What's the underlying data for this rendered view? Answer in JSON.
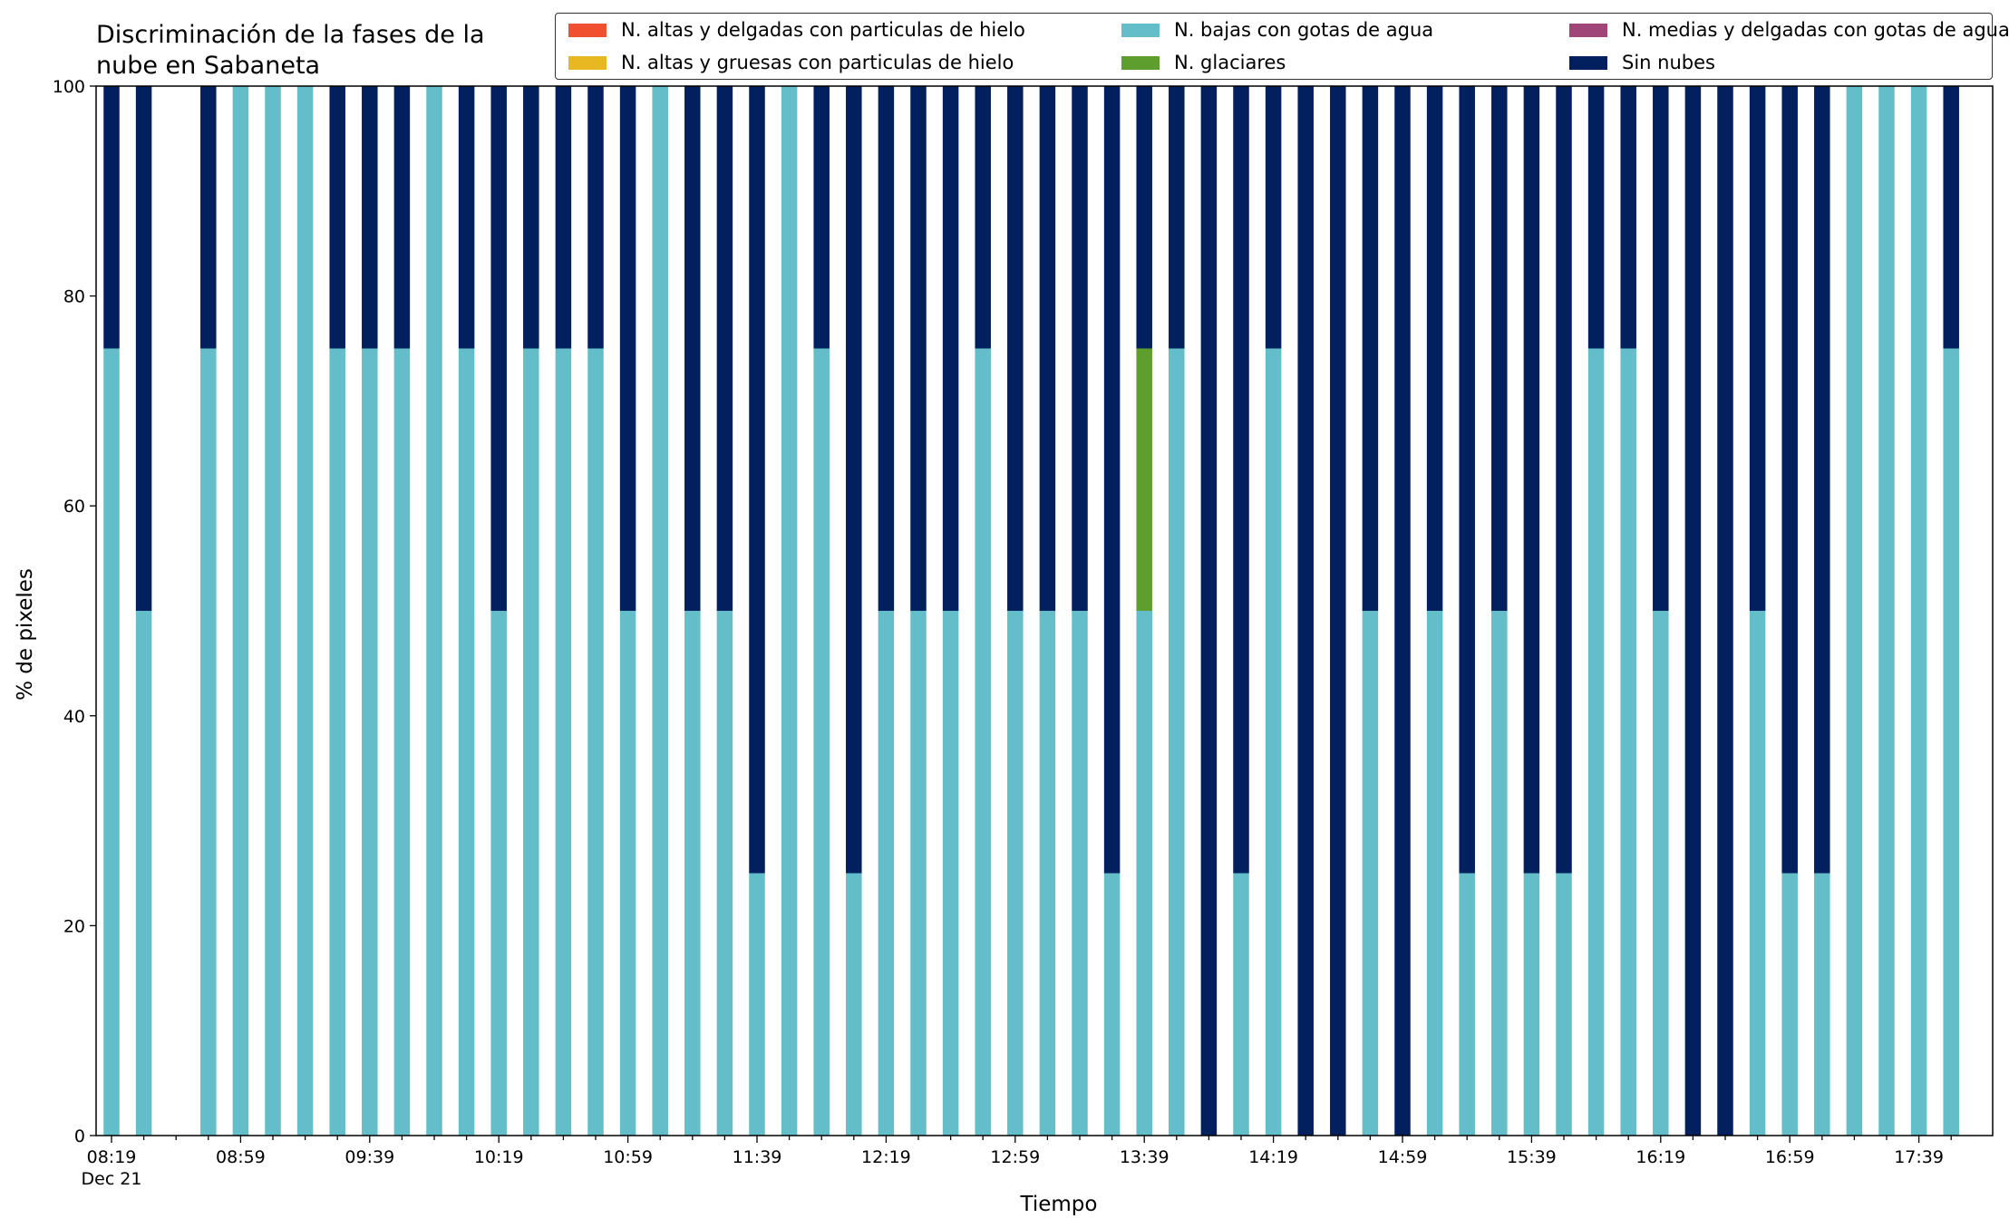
{
  "chart_data": {
    "type": "bar",
    "stacked": true,
    "title_lines": [
      "Discriminación de la fases de la",
      "nube en Sabaneta"
    ],
    "xlabel": "Tiempo",
    "ylabel": "% de pixeles",
    "ylim": [
      0,
      100
    ],
    "yticks": [
      0,
      20,
      40,
      60,
      80,
      100
    ],
    "grid": false,
    "legend_position": "top-right",
    "categories": [
      "08:19",
      "08:29",
      "08:39",
      "08:49",
      "08:59",
      "09:09",
      "09:19",
      "09:29",
      "09:39",
      "09:49",
      "09:59",
      "10:09",
      "10:19",
      "10:29",
      "10:39",
      "10:49",
      "10:59",
      "11:09",
      "11:19",
      "11:29",
      "11:39",
      "11:49",
      "11:59",
      "12:09",
      "12:19",
      "12:29",
      "12:39",
      "12:49",
      "12:59",
      "13:09",
      "13:19",
      "13:29",
      "13:39",
      "13:49",
      "13:59",
      "14:09",
      "14:19",
      "14:29",
      "14:39",
      "14:49",
      "14:59",
      "15:09",
      "15:19",
      "15:29",
      "15:39",
      "15:49",
      "15:59",
      "16:09",
      "16:19",
      "16:29",
      "16:39",
      "16:49",
      "16:59",
      "17:09",
      "17:19",
      "17:29",
      "17:39",
      "17:49"
    ],
    "xtick_labels": [
      {
        "label": "08:19",
        "sub": "Dec 21"
      },
      {
        "label": "08:59",
        "sub": ""
      },
      {
        "label": "09:39",
        "sub": ""
      },
      {
        "label": "10:19",
        "sub": ""
      },
      {
        "label": "10:59",
        "sub": ""
      },
      {
        "label": "11:39",
        "sub": ""
      },
      {
        "label": "12:19",
        "sub": ""
      },
      {
        "label": "12:59",
        "sub": ""
      },
      {
        "label": "13:39",
        "sub": ""
      },
      {
        "label": "14:19",
        "sub": ""
      },
      {
        "label": "14:59",
        "sub": ""
      },
      {
        "label": "15:39",
        "sub": ""
      },
      {
        "label": "16:19",
        "sub": ""
      },
      {
        "label": "16:59",
        "sub": ""
      },
      {
        "label": "17:39",
        "sub": ""
      }
    ],
    "series": [
      {
        "name": "N. altas y delgadas con particulas de hielo",
        "color": "#f04f30",
        "values": [
          0,
          0,
          0,
          0,
          0,
          0,
          0,
          0,
          0,
          0,
          0,
          0,
          0,
          0,
          0,
          0,
          0,
          0,
          0,
          0,
          0,
          0,
          0,
          0,
          0,
          0,
          0,
          0,
          0,
          0,
          0,
          0,
          0,
          0,
          0,
          0,
          0,
          0,
          0,
          0,
          0,
          0,
          0,
          0,
          0,
          0,
          0,
          0,
          0,
          0,
          0,
          0,
          0,
          0,
          0,
          0,
          0,
          0
        ]
      },
      {
        "name": "N. altas y gruesas con particulas de hielo",
        "color": "#e8b823",
        "values": [
          0,
          0,
          0,
          0,
          0,
          0,
          0,
          0,
          0,
          0,
          0,
          0,
          0,
          0,
          0,
          0,
          0,
          0,
          0,
          0,
          0,
          0,
          0,
          0,
          0,
          0,
          0,
          0,
          0,
          0,
          0,
          0,
          0,
          0,
          0,
          0,
          0,
          0,
          0,
          0,
          0,
          0,
          0,
          0,
          0,
          0,
          0,
          0,
          0,
          0,
          0,
          0,
          0,
          0,
          0,
          0,
          0,
          0
        ]
      },
      {
        "name": "N. bajas con gotas de agua",
        "color": "#63bec9",
        "values": [
          75,
          50,
          0,
          75,
          100,
          100,
          100,
          75,
          75,
          75,
          100,
          75,
          50,
          75,
          75,
          75,
          50,
          100,
          50,
          50,
          25,
          100,
          75,
          25,
          50,
          50,
          50,
          75,
          50,
          50,
          50,
          25,
          50,
          75,
          0,
          25,
          75,
          0,
          0,
          50,
          0,
          50,
          25,
          50,
          25,
          25,
          75,
          75,
          50,
          0,
          0,
          50,
          25,
          25,
          100,
          100,
          100,
          75
        ]
      },
      {
        "name": "N. glaciares",
        "color": "#5e9e2e",
        "values": [
          0,
          0,
          0,
          0,
          0,
          0,
          0,
          0,
          0,
          0,
          0,
          0,
          0,
          0,
          0,
          0,
          0,
          0,
          0,
          0,
          0,
          0,
          0,
          0,
          0,
          0,
          0,
          0,
          0,
          0,
          0,
          0,
          25,
          0,
          0,
          0,
          0,
          0,
          0,
          0,
          0,
          0,
          0,
          0,
          0,
          0,
          0,
          0,
          0,
          0,
          0,
          0,
          0,
          0,
          0,
          0,
          0,
          0
        ]
      },
      {
        "name": "N. medias y delgadas con gotas de agua",
        "color": "#a04578",
        "values": [
          0,
          0,
          0,
          0,
          0,
          0,
          0,
          0,
          0,
          0,
          0,
          0,
          0,
          0,
          0,
          0,
          0,
          0,
          0,
          0,
          0,
          0,
          0,
          0,
          0,
          0,
          0,
          0,
          0,
          0,
          0,
          0,
          0,
          0,
          0,
          0,
          0,
          0,
          0,
          0,
          0,
          0,
          0,
          0,
          0,
          0,
          0,
          0,
          0,
          0,
          0,
          0,
          0,
          0,
          0,
          0,
          0,
          0
        ]
      },
      {
        "name": "Sin nubes",
        "color": "#021f5e",
        "values": [
          25,
          50,
          0,
          25,
          0,
          0,
          0,
          25,
          25,
          25,
          0,
          25,
          50,
          25,
          25,
          25,
          50,
          0,
          50,
          50,
          75,
          0,
          25,
          75,
          50,
          50,
          50,
          25,
          50,
          50,
          50,
          75,
          25,
          25,
          100,
          75,
          25,
          100,
          100,
          50,
          100,
          50,
          75,
          50,
          75,
          75,
          25,
          25,
          50,
          100,
          100,
          50,
          75,
          75,
          0,
          0,
          0,
          25
        ]
      }
    ]
  }
}
